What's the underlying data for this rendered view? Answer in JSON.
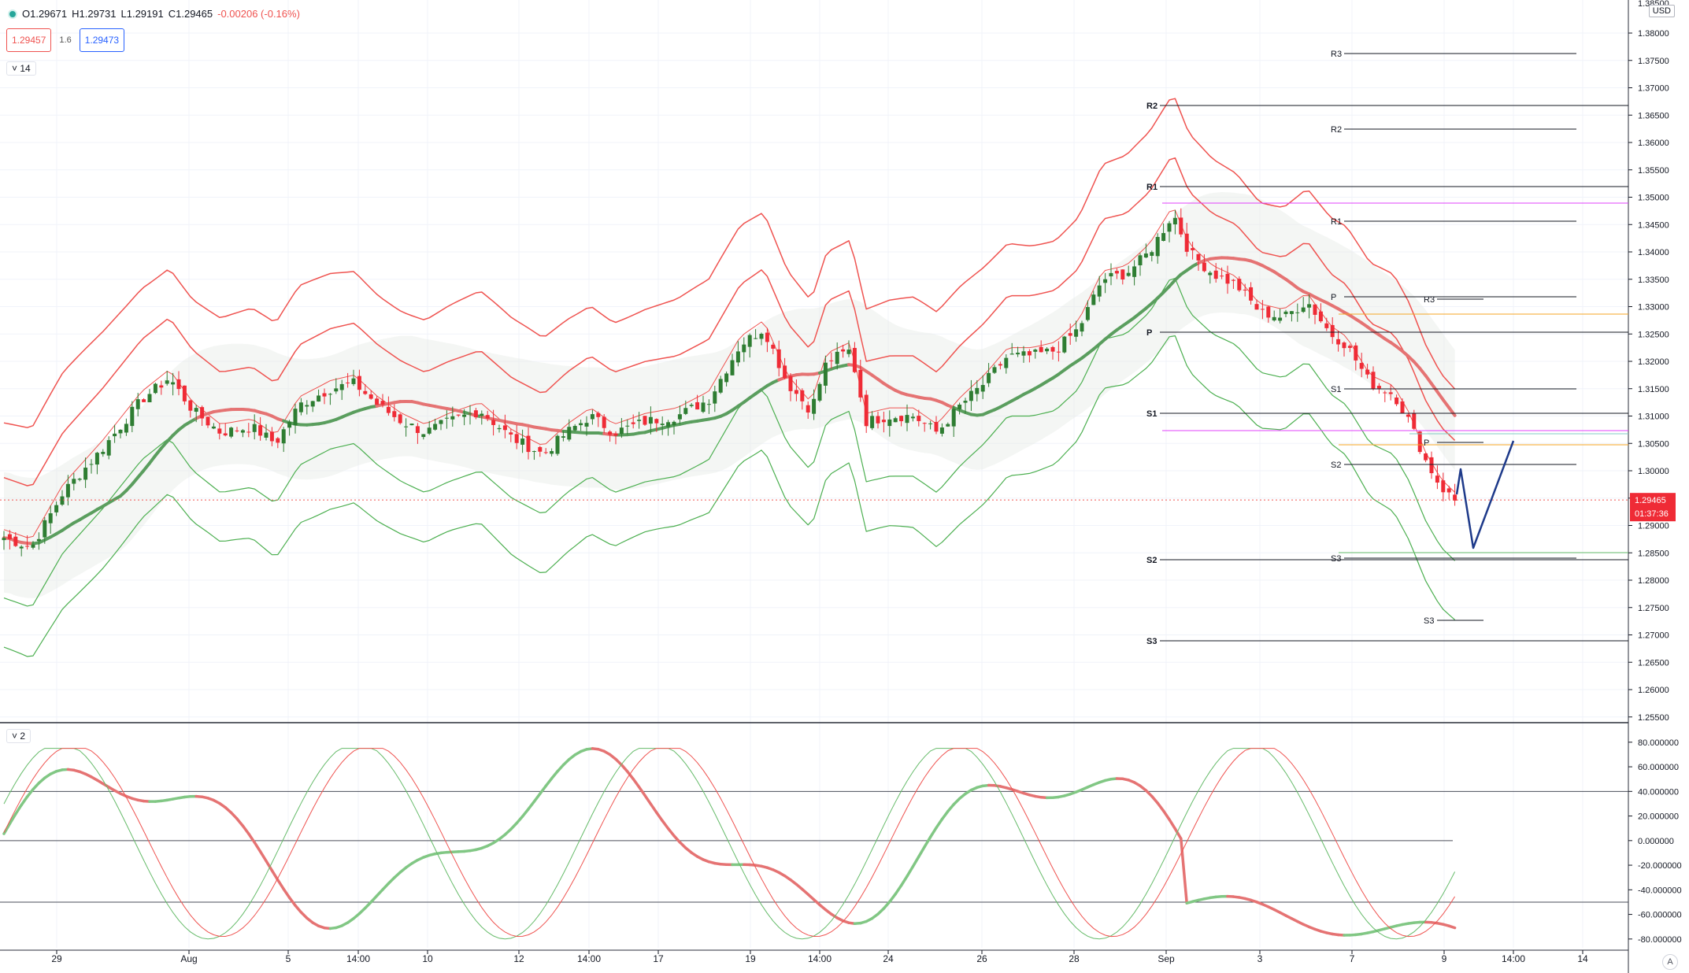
{
  "symbol_bar": {
    "open": "O1.29671",
    "high": "H1.29731",
    "low": "L1.29191",
    "close": "C1.29465",
    "change": "-0.00206 (-0.16%)",
    "sell_price": "1.29457",
    "spread": "1.6",
    "buy_price": "1.29473",
    "indicator_toggle_main": "14",
    "indicator_toggle_osc": "2"
  },
  "price_axis": {
    "currency": "USD",
    "top_partial": "1.38500",
    "ticks": [
      "1.38000",
      "1.37500",
      "1.37000",
      "1.36500",
      "1.36000",
      "1.35500",
      "1.35000",
      "1.34500",
      "1.34000",
      "1.33500",
      "1.33000",
      "1.32500",
      "1.32000",
      "1.31500",
      "1.31000",
      "1.30500",
      "1.30000",
      "1.29500",
      "1.29000",
      "1.28500",
      "1.28000",
      "1.27500",
      "1.27000",
      "1.26500",
      "1.26000",
      "1.25500"
    ],
    "last_price": "1.29465",
    "countdown": "01:37:36"
  },
  "osc_axis": {
    "ticks": [
      "80.000000",
      "60.000000",
      "40.000000",
      "20.000000",
      "0.000000",
      "-20.000000",
      "-40.000000",
      "-60.000000",
      "-80.000000"
    ]
  },
  "time_axis": {
    "labels": [
      "29",
      "Aug",
      "5",
      "14:00",
      "10",
      "12",
      "14:00",
      "17",
      "19",
      "14:00",
      "24",
      "26",
      "28",
      "Sep",
      "3",
      "7",
      "9",
      "14:00",
      "14"
    ]
  },
  "pivots": {
    "labels_left": [
      "R2",
      "R1",
      "P",
      "S1",
      "S2",
      "S3"
    ],
    "labels_mid": [
      "R3",
      "R2",
      "R1",
      "P",
      "S1",
      "S2",
      "S3"
    ],
    "labels_right": [
      "R3",
      "P",
      "S3"
    ]
  },
  "colors": {
    "up": "#26a69a",
    "candle_up": "#2e7d32",
    "candle_down": "#ef2b36",
    "band_red": "#ef5350",
    "band_green": "#4caf50",
    "projection": "#1e3a8a",
    "magenta": "#e040fb",
    "orange": "#f5a623"
  },
  "chart_data": {
    "type": "candlestick",
    "x_range": [
      "Jul 29",
      "Sep 14"
    ],
    "y_range": [
      1.255,
      1.385
    ],
    "last_close": 1.29465,
    "oscillator_range": [
      -90,
      85
    ],
    "oscillator_levels": [
      40,
      0,
      -50
    ]
  }
}
